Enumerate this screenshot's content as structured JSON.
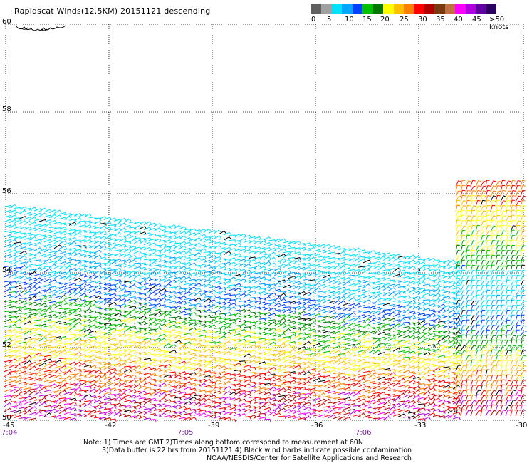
{
  "title": "Rapidscat Winds(12.5KM) 20151121 descending",
  "legend": {
    "colors": [
      "#606060",
      "#a0a0a0",
      "#00e0ff",
      "#00a8ff",
      "#0040ff",
      "#00c000",
      "#007800",
      "#ffff00",
      "#ffc000",
      "#ff8000",
      "#ff0000",
      "#b00000",
      "#7a3a10",
      "#c07040",
      "#ff00ff",
      "#b000e0",
      "#6000a0",
      "#2a0060"
    ],
    "labels": [
      "0",
      "5",
      "10",
      "15",
      "20",
      "25",
      "30",
      "35",
      "40",
      "45",
      ">50 knots"
    ]
  },
  "axes": {
    "lat_labels": [
      "60",
      "58",
      "56",
      "54",
      "52",
      "50"
    ],
    "lon_labels": [
      "-45",
      "-42",
      "-39",
      "-36",
      "-33",
      "-30"
    ],
    "time_labels": [
      "7:04",
      "7:05",
      "7:06"
    ]
  },
  "notes": {
    "line1": "Note: 1) Times are GMT 2)Times along bottom correspond to measurement at 60N",
    "line2": "3)Data buffer is 22 hrs from 20151121 4) Black wind barbs indicate possible contamination",
    "line3": "NOAA/NESDIS/Center for Satellite Applications and Research"
  }
}
